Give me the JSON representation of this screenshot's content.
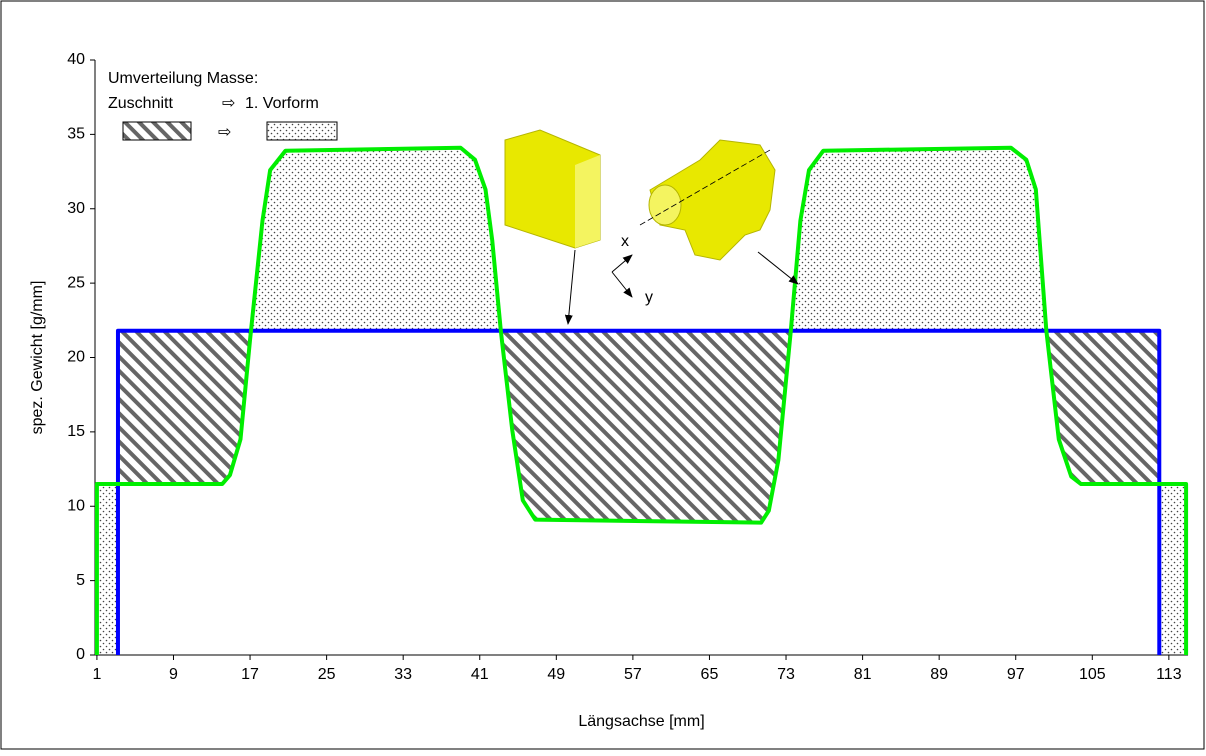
{
  "chart_data": {
    "type": "line",
    "xlabel": "Längsachse [mm]",
    "ylabel": "spez. Gewicht [g/mm]",
    "legend_title": "Umverteilung Masse:",
    "legend_arrow": "⇨",
    "annotations": [
      "x",
      "y"
    ],
    "xlim": [
      0.8,
      115
    ],
    "ylim": [
      0,
      40
    ],
    "xticks": [
      1,
      9,
      17,
      25,
      33,
      41,
      49,
      57,
      65,
      73,
      81,
      89,
      97,
      105,
      113
    ],
    "yticks": [
      0,
      5,
      10,
      15,
      20,
      25,
      30,
      35,
      40
    ],
    "series": [
      {
        "name": "Zuschnitt",
        "color": "#0000ff",
        "x": [
          3.2,
          3.2,
          112,
          112
        ],
        "values": [
          0,
          21.8,
          21.8,
          0
        ]
      },
      {
        "name": "1. Vorform",
        "color": "#00ee00",
        "x": [
          1,
          1,
          14.1,
          14.9,
          16,
          17,
          18.3,
          19.1,
          20.7,
          39,
          40.5,
          41.6,
          42.3,
          43.2,
          44.4,
          45.5,
          46.8,
          70.4,
          71.2,
          72.2,
          73.5,
          74.5,
          75.4,
          76.9,
          96.5,
          98.1,
          99.1,
          100.2,
          101.5,
          102.8,
          103.8,
          114.8,
          114.8
        ],
        "values": [
          0,
          11.5,
          11.5,
          12.1,
          14.5,
          21.2,
          29.2,
          32.6,
          33.9,
          34.1,
          33.3,
          31.3,
          27.9,
          21.8,
          15.1,
          10.4,
          9.1,
          8.9,
          9.7,
          13.1,
          21.8,
          29.2,
          32.6,
          33.9,
          34.1,
          33.3,
          31.3,
          21.8,
          14.5,
          12,
          11.5,
          11.5,
          0
        ]
      }
    ]
  }
}
